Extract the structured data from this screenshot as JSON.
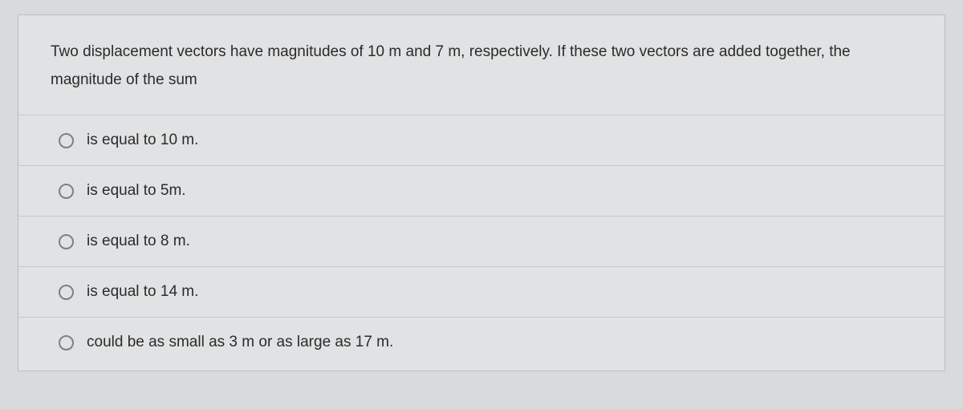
{
  "question": {
    "text": "Two displacement vectors have magnitudes of 10 m and 7 m, respectively. If these two vectors are added together, the magnitude of the sum"
  },
  "options": [
    {
      "label": "is equal to 10 m."
    },
    {
      "label": "is equal to 5m."
    },
    {
      "label": "is equal to 8 m."
    },
    {
      "label": "is equal to 14 m."
    },
    {
      "label": "could be as small as 3 m or as large as 17 m."
    }
  ]
}
